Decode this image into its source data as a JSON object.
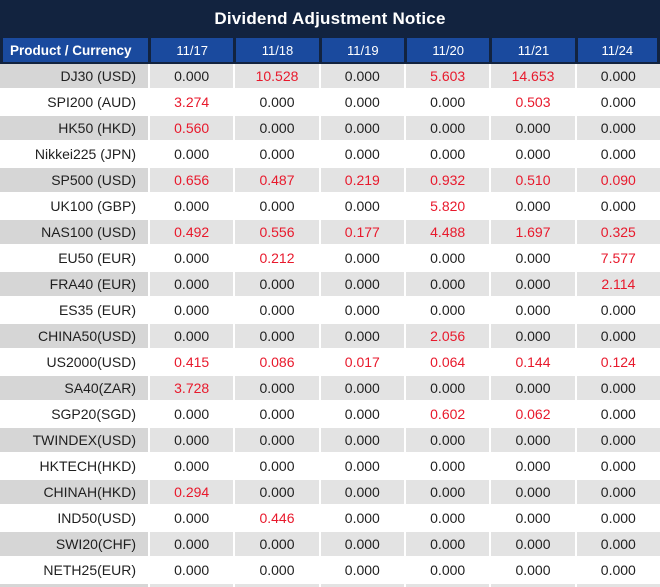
{
  "title": "Dividend Adjustment Notice",
  "colors": {
    "title_bg": "#12233f",
    "header_bg": "#1a4a9e",
    "alt_row_product_bg": "#d6d6d6",
    "alt_row_value_bg": "#e3e3e3",
    "zero_text": "#1f1f1f",
    "nonzero_text": "#e8192c"
  },
  "table": {
    "product_header": "Product / Currency",
    "date_headers": [
      "11/17",
      "11/18",
      "11/19",
      "11/20",
      "11/21",
      "11/24"
    ],
    "rows": [
      {
        "product": "DJ30 (USD)",
        "values": [
          "0.000",
          "10.528",
          "0.000",
          "5.603",
          "14.653",
          "0.000"
        ]
      },
      {
        "product": "SPI200 (AUD)",
        "values": [
          "3.274",
          "0.000",
          "0.000",
          "0.000",
          "0.503",
          "0.000"
        ]
      },
      {
        "product": "HK50 (HKD)",
        "values": [
          "0.560",
          "0.000",
          "0.000",
          "0.000",
          "0.000",
          "0.000"
        ]
      },
      {
        "product": "Nikkei225 (JPN)",
        "values": [
          "0.000",
          "0.000",
          "0.000",
          "0.000",
          "0.000",
          "0.000"
        ]
      },
      {
        "product": "SP500 (USD)",
        "values": [
          "0.656",
          "0.487",
          "0.219",
          "0.932",
          "0.510",
          "0.090"
        ]
      },
      {
        "product": "UK100 (GBP)",
        "values": [
          "0.000",
          "0.000",
          "0.000",
          "5.820",
          "0.000",
          "0.000"
        ]
      },
      {
        "product": "NAS100 (USD)",
        "values": [
          "0.492",
          "0.556",
          "0.177",
          "4.488",
          "1.697",
          "0.325"
        ]
      },
      {
        "product": "EU50 (EUR)",
        "values": [
          "0.000",
          "0.212",
          "0.000",
          "0.000",
          "0.000",
          "7.577"
        ]
      },
      {
        "product": "FRA40 (EUR)",
        "values": [
          "0.000",
          "0.000",
          "0.000",
          "0.000",
          "0.000",
          "2.114"
        ]
      },
      {
        "product": "ES35 (EUR)",
        "values": [
          "0.000",
          "0.000",
          "0.000",
          "0.000",
          "0.000",
          "0.000"
        ]
      },
      {
        "product": "CHINA50(USD)",
        "values": [
          "0.000",
          "0.000",
          "0.000",
          "2.056",
          "0.000",
          "0.000"
        ]
      },
      {
        "product": "US2000(USD)",
        "values": [
          "0.415",
          "0.086",
          "0.017",
          "0.064",
          "0.144",
          "0.124"
        ]
      },
      {
        "product": "SA40(ZAR)",
        "values": [
          "3.728",
          "0.000",
          "0.000",
          "0.000",
          "0.000",
          "0.000"
        ]
      },
      {
        "product": "SGP20(SGD)",
        "values": [
          "0.000",
          "0.000",
          "0.000",
          "0.602",
          "0.062",
          "0.000"
        ]
      },
      {
        "product": "TWINDEX(USD)",
        "values": [
          "0.000",
          "0.000",
          "0.000",
          "0.000",
          "0.000",
          "0.000"
        ]
      },
      {
        "product": "HKTECH(HKD)",
        "values": [
          "0.000",
          "0.000",
          "0.000",
          "0.000",
          "0.000",
          "0.000"
        ]
      },
      {
        "product": "CHINAH(HKD)",
        "values": [
          "0.294",
          "0.000",
          "0.000",
          "0.000",
          "0.000",
          "0.000"
        ]
      },
      {
        "product": "IND50(USD)",
        "values": [
          "0.000",
          "0.446",
          "0.000",
          "0.000",
          "0.000",
          "0.000"
        ]
      },
      {
        "product": "SWI20(CHF)",
        "values": [
          "0.000",
          "0.000",
          "0.000",
          "0.000",
          "0.000",
          "0.000"
        ]
      },
      {
        "product": "NETH25(EUR)",
        "values": [
          "0.000",
          "0.000",
          "0.000",
          "0.000",
          "0.000",
          "0.000"
        ]
      }
    ]
  }
}
